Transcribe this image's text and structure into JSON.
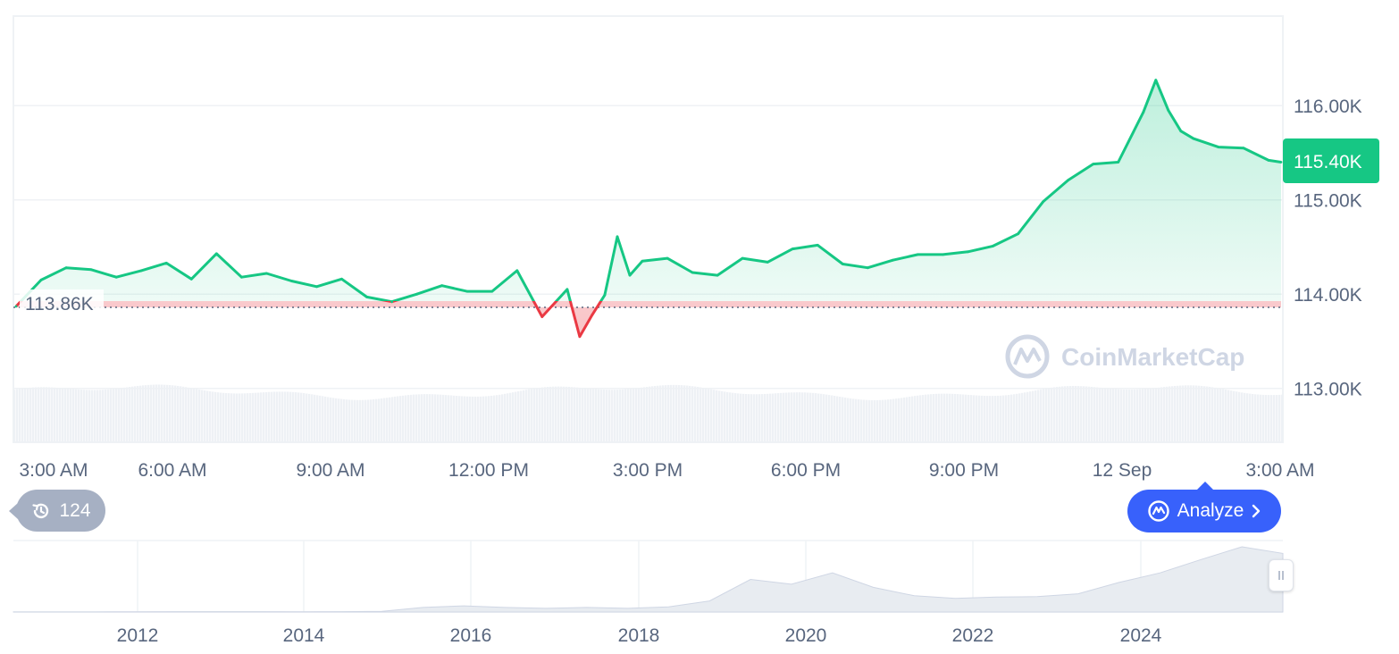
{
  "chart_data": {
    "type": "area",
    "y_axis": {
      "ticks": [
        113000,
        114000,
        115000,
        116000
      ],
      "tick_labels": [
        "113.00K",
        "114.00K",
        "115.00K",
        "116.00K"
      ],
      "range": [
        112950,
        116950
      ]
    },
    "x_axis": {
      "tick_labels": [
        "3:00 AM",
        "6:00 AM",
        "9:00 AM",
        "12:00 PM",
        "3:00 PM",
        "6:00 PM",
        "9:00 PM",
        "12 Sep",
        "3:00 AM"
      ]
    },
    "reference_price": 113860,
    "reference_label": "113.86K",
    "current_price_label": "115.40K",
    "up_color": "#16c784",
    "down_color": "#ea3943",
    "series": [
      {
        "x": [
          "2:00 AM",
          "2:30 AM",
          "3:00 AM",
          "3:30 AM",
          "4:00 AM",
          "4:30 AM",
          "5:00 AM",
          "5:30 AM",
          "6:00 AM",
          "6:30 AM",
          "7:00 AM",
          "7:30 AM",
          "8:00 AM",
          "8:30 AM",
          "9:00 AM",
          "9:30 AM",
          "10:00 AM",
          "10:30 AM",
          "11:00 AM",
          "11:30 AM",
          "12:00 PM",
          "12:30 PM",
          "1:00 PM",
          "1:15 PM",
          "1:30 PM",
          "1:45 PM",
          "2:00 PM",
          "2:15 PM",
          "2:30 PM",
          "3:00 PM",
          "3:30 PM",
          "4:00 PM",
          "4:30 PM",
          "5:00 PM",
          "5:30 PM",
          "6:00 PM",
          "6:30 PM",
          "7:00 PM",
          "7:30 PM",
          "8:00 PM",
          "8:30 PM",
          "9:00 PM",
          "9:30 PM",
          "10:00 PM",
          "10:30 PM",
          "11:00 PM",
          "11:30 PM",
          "12:00 AM",
          "12:30 AM",
          "12:45 AM",
          "1:00 AM",
          "1:15 AM",
          "1:30 AM",
          "2:00 AM",
          "2:30 AM",
          "3:00 AM",
          "3:15 AM"
        ],
        "values": [
          113870,
          114150,
          114280,
          114260,
          114180,
          114250,
          114330,
          114160,
          114430,
          114180,
          114220,
          114140,
          114080,
          114160,
          113970,
          113920,
          114000,
          114090,
          114030,
          114030,
          114250,
          113760,
          114050,
          113550,
          113780,
          113990,
          114610,
          114200,
          114350,
          114380,
          114230,
          114200,
          114380,
          114340,
          114480,
          114520,
          114320,
          114280,
          114360,
          114420,
          114420,
          114450,
          114510,
          114640,
          114980,
          115210,
          115380,
          115400,
          115930,
          116270,
          115950,
          115730,
          115650,
          115560,
          115550,
          115420,
          115400
        ]
      }
    ],
    "mini_chart": {
      "type": "area",
      "year_labels": [
        "2012",
        "2014",
        "2016",
        "2018",
        "2020",
        "2022",
        "2024"
      ],
      "values": [
        0.001,
        0.001,
        0.002,
        0.004,
        0.006,
        0.006,
        0.005,
        0.005,
        0.006,
        0.01,
        0.07,
        0.1,
        0.07,
        0.06,
        0.07,
        0.06,
        0.08,
        0.18,
        0.5,
        0.45,
        0.6,
        0.4,
        0.25,
        0.22,
        0.23,
        0.25,
        0.28,
        0.48,
        0.6,
        0.85,
        1.0,
        0.95
      ]
    }
  },
  "watermark": "CoinMarketCap",
  "history_badge": {
    "icon": "history-icon",
    "count": "124"
  },
  "analyze_button": {
    "label": "Analyze",
    "icon": "analyze-icon"
  },
  "mini_handle": {
    "icon": "drag-handle-icon"
  }
}
